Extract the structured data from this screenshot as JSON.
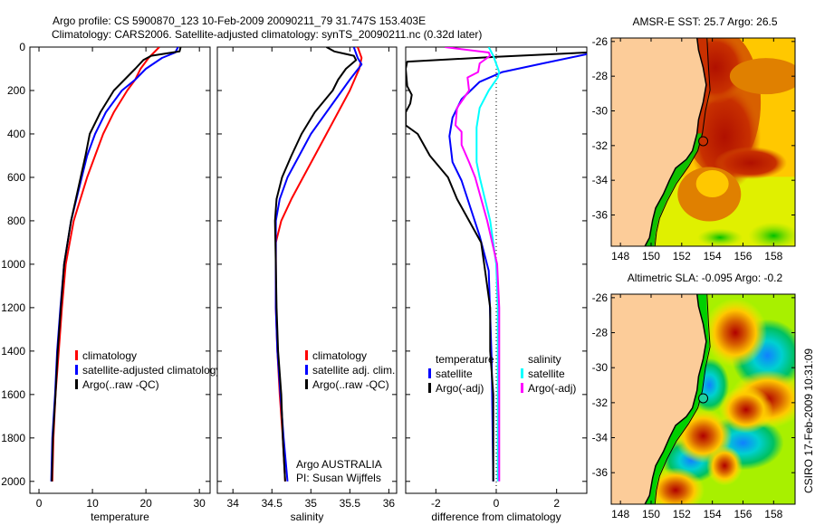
{
  "header": {
    "title_line1": "Argo profile: CS 5900870_123 10-Feb-2009 20090211_79 31.747S 153.403E",
    "title_line2": "Climatology: CARS2006. Satellite-adjusted climatology: synTS_20090211.nc (0.32d later)"
  },
  "footer_stamp": "CSIRO 17-Feb-2009 10:31:09",
  "credits": {
    "line1": "Argo AUSTRALIA",
    "line2": "PI: Susan Wijffels"
  },
  "chart_data": [
    {
      "type": "line",
      "id": "temperature",
      "xlabel": "temperature",
      "ylabel": "",
      "xlim": [
        -1.7,
        32
      ],
      "ylim": [
        2055,
        0
      ],
      "xticks": [
        0,
        10,
        20,
        30
      ],
      "yticks": [
        0,
        200,
        400,
        600,
        800,
        1000,
        1200,
        1400,
        1600,
        1800,
        2000
      ],
      "legend": [
        "climatology",
        "satellite-adjusted climatology",
        "Argo(..raw -QC)"
      ],
      "series": [
        {
          "name": "climatology",
          "color": "#ff0000",
          "depth": [
            0,
            50,
            100,
            150,
            200,
            300,
            400,
            500,
            600,
            800,
            1000,
            1200,
            1400,
            1600,
            1800,
            2000
          ],
          "values": [
            22.5,
            20.5,
            19,
            18,
            16.5,
            14,
            12,
            10.5,
            9,
            6.5,
            5,
            4.3,
            3.7,
            3.1,
            2.7,
            2.5
          ]
        },
        {
          "name": "satellite-adjusted climatology",
          "color": "#0000ff",
          "depth": [
            0,
            25,
            50,
            100,
            150,
            200,
            300,
            400,
            500,
            600,
            800,
            1000,
            1200,
            1400,
            1600,
            1800,
            2000
          ],
          "values": [
            26,
            25.5,
            23,
            20,
            18,
            15.5,
            12.5,
            10.5,
            9,
            8,
            6,
            4.7,
            4,
            3.4,
            3,
            2.5,
            2.3
          ]
        },
        {
          "name": "Argo(..raw -QC)",
          "color": "#000000",
          "depth": [
            0,
            20,
            40,
            60,
            100,
            150,
            200,
            300,
            400,
            500,
            600,
            800,
            1000,
            1200,
            1400,
            1600,
            1800,
            2000
          ],
          "values": [
            26.5,
            26.3,
            21,
            19.5,
            18,
            16,
            14,
            11.5,
            9.5,
            8.7,
            7.8,
            6,
            4.7,
            4.1,
            3.5,
            3.1,
            2.6,
            2.4
          ]
        }
      ]
    },
    {
      "type": "line",
      "id": "salinity",
      "xlabel": "salinity",
      "xlim": [
        33.8,
        36.1
      ],
      "ylim": [
        2055,
        0
      ],
      "xticks": [
        34,
        34.5,
        35,
        35.5,
        36
      ],
      "legend": [
        "climatology",
        "satellite adj. clim.",
        "Argo(..raw -QC)"
      ],
      "series": [
        {
          "name": "climatology",
          "color": "#ff0000",
          "depth": [
            0,
            50,
            100,
            200,
            300,
            400,
            500,
            600,
            700,
            800,
            900,
            1000,
            1200,
            1400,
            1600,
            1800,
            2000
          ],
          "values": [
            35.6,
            35.65,
            35.62,
            35.5,
            35.35,
            35.2,
            35.05,
            34.9,
            34.75,
            34.62,
            34.55,
            34.55,
            34.55,
            34.57,
            34.6,
            34.64,
            34.67
          ]
        },
        {
          "name": "satellite adj. clim.",
          "color": "#0000ff",
          "depth": [
            0,
            50,
            80,
            150,
            200,
            300,
            400,
            500,
            600,
            700,
            800,
            1000,
            1200,
            1400,
            1600,
            1800,
            2000
          ],
          "values": [
            35.55,
            35.6,
            35.65,
            35.5,
            35.4,
            35.2,
            35.0,
            34.85,
            34.7,
            34.6,
            34.55,
            34.55,
            34.55,
            34.57,
            34.61,
            34.65,
            34.7
          ]
        },
        {
          "name": "Argo(..raw -QC)",
          "color": "#000000",
          "depth": [
            0,
            20,
            40,
            60,
            100,
            150,
            200,
            300,
            400,
            500,
            600,
            700,
            800,
            1000,
            1200,
            1400,
            1600,
            1800,
            2000
          ],
          "values": [
            35.2,
            35.3,
            35.55,
            35.58,
            35.45,
            35.35,
            35.28,
            35.05,
            34.88,
            34.75,
            34.63,
            34.56,
            34.54,
            34.55,
            34.56,
            34.58,
            34.62,
            34.64,
            34.67
          ]
        }
      ]
    },
    {
      "type": "line",
      "id": "difference",
      "xlabel": "difference from climatology",
      "xlim": [
        -3,
        3
      ],
      "ylim": [
        2055,
        0
      ],
      "xticks": [
        -2,
        0,
        2
      ],
      "zero_line": true,
      "legend_groups": [
        {
          "title": "temperature",
          "items": [
            "satellite",
            "Argo(-adj)"
          ]
        },
        {
          "title": "salinity",
          "items": [
            "satellite",
            "Argo(-adj)"
          ]
        }
      ],
      "series": [
        {
          "name": "temperature satellite",
          "color": "#0000ff",
          "depth": [
            0,
            33,
            75,
            115,
            160,
            240,
            325,
            410,
            530,
            615,
            870,
            1030,
            1450,
            2000
          ],
          "values": [
            3.6,
            3,
            1.55,
            0.2,
            -0.55,
            -1.15,
            -1.45,
            -1.55,
            -1.45,
            -1.15,
            -0.55,
            -0.25,
            -0.15,
            -0.1
          ]
        },
        {
          "name": "temperature Argo(-adj)",
          "color": "#000000",
          "depth": [
            0,
            10,
            25,
            45,
            67,
            100,
            180,
            220,
            260,
            300,
            360,
            400,
            500,
            600,
            700,
            800,
            900,
            1000,
            1200,
            1400,
            1600,
            2000
          ],
          "values": [
            3.2,
            3.05,
            3.0,
            0,
            -2.95,
            -3,
            -2.95,
            -2.8,
            -2.85,
            -3,
            -3,
            -2.6,
            -2.2,
            -1.6,
            -1.3,
            -0.9,
            -0.5,
            -0.4,
            -0.2,
            -0.2,
            -0.1,
            -0.1
          ]
        },
        {
          "name": "salinity satellite",
          "color": "#00ffff",
          "depth": [
            0,
            40,
            115,
            140,
            200,
            280,
            370,
            530,
            600,
            800,
            1000,
            1200,
            1600,
            2000
          ],
          "values": [
            -0.25,
            -0.1,
            0.1,
            0.05,
            -0.25,
            -0.55,
            -0.65,
            -0.65,
            -0.55,
            -0.2,
            0,
            0.05,
            0.05,
            0.05
          ]
        },
        {
          "name": "salinity Argo(-adj)",
          "color": "#ff00ff",
          "depth": [
            0,
            25,
            40,
            75,
            115,
            140,
            200,
            280,
            360,
            390,
            450,
            530,
            600,
            800,
            1000,
            1200,
            1600,
            2000
          ],
          "values": [
            -1.7,
            -0.25,
            -0.2,
            -0.55,
            -0.6,
            -0.95,
            -0.9,
            -1.3,
            -1.35,
            -1.15,
            -1.15,
            -0.9,
            -0.7,
            -0.3,
            0.03,
            0.1,
            0.1,
            0.1
          ]
        }
      ]
    },
    {
      "type": "heatmap",
      "id": "sst-map",
      "title": "AMSR-E SST: 25.7 Argo: 26.5",
      "xlim": [
        147.4,
        159.4
      ],
      "ylim": [
        -25.8,
        -37.8
      ],
      "xticks": [
        148,
        150,
        152,
        154,
        156,
        158
      ],
      "yticks": [
        -26,
        -28,
        -30,
        -32,
        -34,
        -36
      ],
      "argo_position": {
        "lon": 153.403,
        "lat": -31.747
      },
      "land_color": "#fccc99"
    },
    {
      "type": "heatmap",
      "id": "sla-map",
      "title": "Altimetric SLA: -0.095 Argo: -0.2",
      "xlim": [
        147.4,
        159.4
      ],
      "ylim": [
        -25.8,
        -37.8
      ],
      "xticks": [
        148,
        150,
        152,
        154,
        156,
        158
      ],
      "yticks": [
        -26,
        -28,
        -30,
        -32,
        -34,
        -36
      ],
      "argo_position": {
        "lon": 153.403,
        "lat": -31.747
      },
      "land_color": "#fccc99"
    }
  ]
}
